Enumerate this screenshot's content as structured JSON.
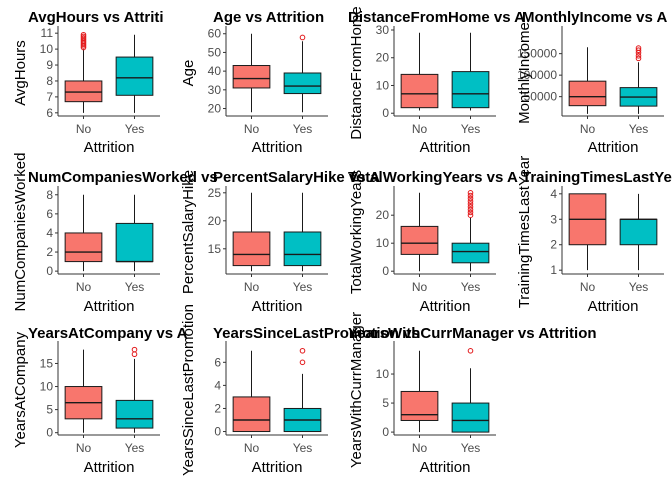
{
  "colors": {
    "No": "#F8766D",
    "Yes": "#00BFC4",
    "outlier": "#e31a1c",
    "box_stroke": "#1a1a1a",
    "axis": "#333333"
  },
  "chart_data": [
    {
      "type": "boxplot",
      "title": "AvgHours vs Attriti",
      "xlabel": "Attrition",
      "ylabel": "AvgHours",
      "categories": [
        "No",
        "Yes"
      ],
      "ylim": [
        5.8,
        11.2
      ],
      "yticks": [
        6,
        7,
        8,
        9,
        10,
        11
      ],
      "boxes": [
        {
          "group": "No",
          "min": 6.0,
          "q1": 6.7,
          "median": 7.3,
          "q3": 8.0,
          "max": 10.0,
          "outliers": [
            10.1,
            10.2,
            10.3,
            10.4,
            10.5,
            10.6,
            10.7,
            10.8,
            10.9
          ]
        },
        {
          "group": "Yes",
          "min": 6.0,
          "q1": 7.1,
          "median": 8.2,
          "q3": 9.5,
          "max": 10.9,
          "outliers": []
        }
      ]
    },
    {
      "type": "boxplot",
      "title": "Age vs Attrition",
      "xlabel": "Attrition",
      "ylabel": "Age",
      "categories": [
        "No",
        "Yes"
      ],
      "ylim": [
        16,
        62
      ],
      "yticks": [
        20,
        30,
        40,
        50,
        60
      ],
      "boxes": [
        {
          "group": "No",
          "min": 18,
          "q1": 31,
          "median": 36,
          "q3": 43,
          "max": 60,
          "outliers": []
        },
        {
          "group": "Yes",
          "min": 18,
          "q1": 28,
          "median": 32,
          "q3": 39,
          "max": 56,
          "outliers": [
            58
          ]
        }
      ]
    },
    {
      "type": "boxplot",
      "title": "DistanceFromHome vs A",
      "xlabel": "Attrition",
      "ylabel": "DistanceFromHome",
      "categories": [
        "No",
        "Yes"
      ],
      "ylim": [
        -1,
        30
      ],
      "yticks": [
        0,
        10,
        20,
        30
      ],
      "boxes": [
        {
          "group": "No",
          "min": 1,
          "q1": 2,
          "median": 7,
          "q3": 14,
          "max": 29,
          "outliers": []
        },
        {
          "group": "Yes",
          "min": 1,
          "q1": 2,
          "median": 7,
          "q3": 15,
          "max": 29,
          "outliers": []
        }
      ]
    },
    {
      "type": "boxplot",
      "title": "MonthlyIncome vs A",
      "xlabel": "Attrition",
      "ylabel": "MonthlyIncome",
      "categories": [
        "No",
        "Yes"
      ],
      "ylim": [
        5000,
        205000
      ],
      "yticks": [
        50000,
        100000,
        150000
      ],
      "boxes": [
        {
          "group": "No",
          "min": 10000,
          "q1": 29000,
          "median": 50000,
          "q3": 86000,
          "max": 165000,
          "outliers": []
        },
        {
          "group": "Yes",
          "min": 10000,
          "q1": 28000,
          "median": 49000,
          "q3": 71000,
          "max": 130000,
          "outliers": [
            139000,
            145000,
            152000,
            158000,
            163000
          ]
        }
      ]
    },
    {
      "type": "boxplot",
      "title": "NumCompaniesWorked vs",
      "xlabel": "Attrition",
      "ylabel": "NumCompaniesWorked",
      "categories": [
        "No",
        "Yes"
      ],
      "ylim": [
        -0.3,
        8.5
      ],
      "yticks": [
        0,
        2,
        4,
        6,
        8
      ],
      "boxes": [
        {
          "group": "No",
          "min": 0,
          "q1": 1,
          "median": 2,
          "q3": 4,
          "max": 8,
          "outliers": []
        },
        {
          "group": "Yes",
          "min": 0,
          "q1": 1,
          "median": 1,
          "q3": 5,
          "max": 8,
          "outliers": []
        }
      ]
    },
    {
      "type": "boxplot",
      "title": "PercentSalaryHike vs A",
      "xlabel": "Attrition",
      "ylabel": "PercentSalaryHike",
      "categories": [
        "No",
        "Yes"
      ],
      "ylim": [
        10.5,
        25.5
      ],
      "yticks": [
        15,
        20,
        25
      ],
      "boxes": [
        {
          "group": "No",
          "min": 11,
          "q1": 12,
          "median": 14,
          "q3": 18,
          "max": 25,
          "outliers": []
        },
        {
          "group": "Yes",
          "min": 11,
          "q1": 12,
          "median": 14,
          "q3": 18,
          "max": 25,
          "outliers": []
        }
      ]
    },
    {
      "type": "boxplot",
      "title": "TotalWorkingYears vs A",
      "xlabel": "Attrition",
      "ylabel": "TotalWorkingYears",
      "categories": [
        "No",
        "Yes"
      ],
      "ylim": [
        -1,
        29
      ],
      "yticks": [
        0,
        10,
        20
      ],
      "boxes": [
        {
          "group": "No",
          "min": 0,
          "q1": 6,
          "median": 10,
          "q3": 16,
          "max": 28,
          "outliers": []
        },
        {
          "group": "Yes",
          "min": 0,
          "q1": 3,
          "median": 7,
          "q3": 10,
          "max": 19,
          "outliers": [
            20,
            21,
            22,
            23,
            24,
            25,
            26,
            27,
            28
          ]
        }
      ]
    },
    {
      "type": "boxplot",
      "title": "TrainingTimesLastYear vs",
      "xlabel": "Attrition",
      "ylabel": "TrainingTimesLastYear",
      "categories": [
        "No",
        "Yes"
      ],
      "ylim": [
        0.85,
        4.15
      ],
      "yticks": [
        1,
        2,
        3,
        4
      ],
      "boxes": [
        {
          "group": "No",
          "min": 1,
          "q1": 2,
          "median": 3,
          "q3": 4,
          "max": 4,
          "outliers": []
        },
        {
          "group": "Yes",
          "min": 1,
          "q1": 2,
          "median": 3,
          "q3": 3,
          "max": 4,
          "outliers": []
        }
      ]
    },
    {
      "type": "boxplot",
      "title": "YearsAtCompany vs A",
      "xlabel": "Attrition",
      "ylabel": "YearsAtCompany",
      "categories": [
        "No",
        "Yes"
      ],
      "ylim": [
        -0.5,
        19
      ],
      "yticks": [
        0,
        5,
        10,
        15
      ],
      "boxes": [
        {
          "group": "No",
          "min": 0,
          "q1": 3,
          "median": 6.5,
          "q3": 10,
          "max": 18,
          "outliers": []
        },
        {
          "group": "Yes",
          "min": 0,
          "q1": 1,
          "median": 3,
          "q3": 7,
          "max": 16,
          "outliers": [
            17,
            18
          ]
        }
      ]
    },
    {
      "type": "boxplot",
      "title": "YearsSinceLastPromotion vs",
      "xlabel": "Attrition",
      "ylabel": "YearsSinceLastPromotion",
      "categories": [
        "No",
        "Yes"
      ],
      "ylim": [
        -0.3,
        7.5
      ],
      "yticks": [
        0,
        2,
        4,
        6
      ],
      "boxes": [
        {
          "group": "No",
          "min": 0,
          "q1": 0,
          "median": 1,
          "q3": 3,
          "max": 7,
          "outliers": []
        },
        {
          "group": "Yes",
          "min": 0,
          "q1": 0,
          "median": 1,
          "q3": 2,
          "max": 5,
          "outliers": [
            6,
            7
          ]
        }
      ]
    },
    {
      "type": "boxplot",
      "title": "YearsWithCurrManager vs Attrition",
      "xlabel": "Attrition",
      "ylabel": "YearsWithCurrManager",
      "categories": [
        "No",
        "Yes"
      ],
      "ylim": [
        -0.5,
        15
      ],
      "yticks": [
        0,
        5,
        10
      ],
      "boxes": [
        {
          "group": "No",
          "min": 0,
          "q1": 2,
          "median": 3,
          "q3": 7,
          "max": 14,
          "outliers": []
        },
        {
          "group": "Yes",
          "min": 0,
          "q1": 0,
          "median": 2,
          "q3": 5,
          "max": 11,
          "outliers": [
            14
          ]
        }
      ]
    }
  ]
}
